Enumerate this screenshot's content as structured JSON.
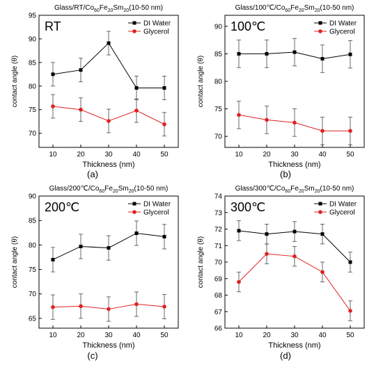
{
  "colors": {
    "water": "#000000",
    "glycerol": "#e02020",
    "err": "#444444"
  },
  "chart_data": [
    {
      "type": "line",
      "panel_label": "(a)",
      "title_main": "Glass/RT/Co",
      "title_sub": [
        "60",
        "20",
        "20"
      ],
      "title_elems": [
        "Fe",
        "Sm"
      ],
      "title_tail": "(10-50 nm)",
      "inset_label": "RT",
      "xlabel": "Thickness (nm)",
      "ylabel": "contact angle (θ)",
      "x": [
        10,
        20,
        30,
        40,
        50
      ],
      "xlim": [
        5,
        55
      ],
      "ylim": [
        67,
        95
      ],
      "yticks": [
        70,
        75,
        80,
        85,
        90,
        95
      ],
      "legend": "top-right",
      "series": [
        {
          "name": "DI Water",
          "marker": "square",
          "values": [
            82.5,
            83.4,
            89.1,
            79.6,
            79.6
          ],
          "err": [
            2.5,
            2.5,
            2.5,
            2.5,
            2.5
          ]
        },
        {
          "name": "Glycerol",
          "marker": "circle",
          "values": [
            75.7,
            75.0,
            72.6,
            74.8,
            71.9
          ],
          "err": [
            2.5,
            2.5,
            2.5,
            2.5,
            2.5
          ]
        }
      ]
    },
    {
      "type": "line",
      "panel_label": "(b)",
      "title_main": "Glass/100℃/Co",
      "title_sub": [
        "60",
        "20",
        "20"
      ],
      "title_elems": [
        "Fe",
        "Sm"
      ],
      "title_tail": "(10-50 nm)",
      "inset_label": "100℃",
      "xlabel": "Thickness (nm)",
      "ylabel": "contact angle (θ)",
      "x": [
        10,
        20,
        30,
        40,
        50
      ],
      "xlim": [
        5,
        55
      ],
      "ylim": [
        68,
        92
      ],
      "yticks": [
        70,
        75,
        80,
        85,
        90
      ],
      "legend": "top-right",
      "series": [
        {
          "name": "DI Water",
          "marker": "square",
          "values": [
            85.0,
            85.0,
            85.3,
            84.1,
            84.9
          ],
          "err": [
            2.5,
            2.5,
            2.5,
            2.5,
            2.5
          ]
        },
        {
          "name": "Glycerol",
          "marker": "circle",
          "values": [
            73.9,
            73.0,
            72.5,
            71.0,
            71.0
          ],
          "err": [
            2.5,
            2.5,
            2.5,
            2.5,
            2.5
          ]
        }
      ]
    },
    {
      "type": "line",
      "panel_label": "(c)",
      "title_main": "Glass/200℃/Co",
      "title_sub": [
        "60",
        "20",
        "20"
      ],
      "title_elems": [
        "Fe",
        "Sm"
      ],
      "title_tail": "(10-50 nm)",
      "inset_label": "200℃",
      "xlabel": "Thickness (nm)",
      "ylabel": "contact angle (θ)",
      "x": [
        10,
        20,
        30,
        40,
        50
      ],
      "xlim": [
        5,
        55
      ],
      "ylim": [
        63,
        90
      ],
      "yticks": [
        65,
        70,
        75,
        80,
        85,
        90
      ],
      "legend": "top-right",
      "series": [
        {
          "name": "DI Water",
          "marker": "square",
          "values": [
            77.0,
            79.7,
            79.4,
            82.4,
            81.7
          ],
          "err": [
            2.5,
            2.5,
            2.5,
            2.5,
            2.5
          ]
        },
        {
          "name": "Glycerol",
          "marker": "circle",
          "values": [
            67.3,
            67.5,
            66.9,
            67.9,
            67.4
          ],
          "err": [
            2.5,
            2.5,
            2.5,
            2.5,
            2.5
          ]
        }
      ]
    },
    {
      "type": "line",
      "panel_label": "(d)",
      "title_main": "Glass/300℃/Co",
      "title_sub": [
        "60",
        "20",
        "20"
      ],
      "title_elems": [
        "Fe",
        "Sm"
      ],
      "title_tail": "(10-50 nm)",
      "inset_label": "300℃",
      "xlabel": "Thickness (nm)",
      "ylabel": "contact angle (θ)",
      "x": [
        10,
        20,
        30,
        40,
        50
      ],
      "xlim": [
        5,
        55
      ],
      "ylim": [
        66,
        74
      ],
      "yticks": [
        66,
        67,
        68,
        69,
        70,
        71,
        72,
        73,
        74
      ],
      "legend": "top-right",
      "series": [
        {
          "name": "DI Water",
          "marker": "square",
          "values": [
            71.9,
            71.7,
            71.85,
            71.7,
            70.0
          ],
          "err": [
            0.6,
            0.6,
            0.6,
            0.6,
            0.6
          ]
        },
        {
          "name": "Glycerol",
          "marker": "circle",
          "values": [
            68.8,
            70.5,
            70.35,
            69.4,
            67.05
          ],
          "err": [
            0.6,
            0.6,
            0.6,
            0.6,
            0.6
          ]
        }
      ]
    }
  ]
}
